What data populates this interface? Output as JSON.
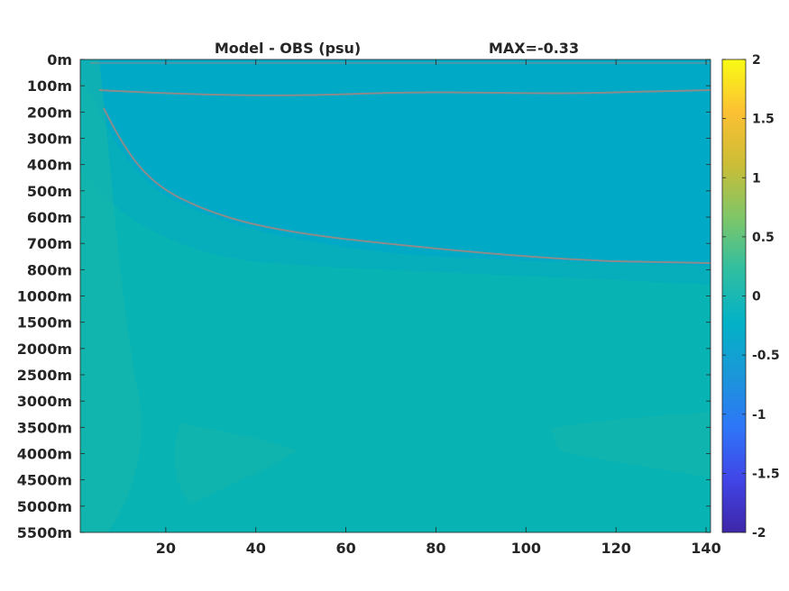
{
  "figure": {
    "title_left": "Model - OBS (psu)",
    "title_right": "MAX=-0.33"
  },
  "chart_data": {
    "type": "heatmap",
    "title": "Model - OBS (psu)",
    "annotation": "MAX=-0.33",
    "x": {
      "ticks": [
        20,
        40,
        60,
        80,
        100,
        120,
        140
      ],
      "range": [
        1,
        141
      ]
    },
    "y": {
      "reversed": true,
      "tick_labels": [
        "0m",
        "100m",
        "200m",
        "300m",
        "400m",
        "500m",
        "600m",
        "700m",
        "800m",
        "1000m",
        "1500m",
        "2000m",
        "2500m",
        "3000m",
        "3500m",
        "4000m",
        "4500m",
        "5000m",
        "5500m"
      ]
    },
    "colorbar": {
      "range": [
        -2,
        2
      ],
      "ticks": [
        "2",
        "1.5",
        "1",
        "0.5",
        "0",
        "-0.5",
        "-1",
        "-1.5",
        "-2"
      ],
      "colormap": "parula",
      "stops": [
        "#3e26a8",
        "#4145e7",
        "#2e76f8",
        "#1a97d8",
        "#03b2c6",
        "#30bea0",
        "#7fc668",
        "#cbbd36",
        "#fcc033",
        "#f9fb14"
      ]
    },
    "field_colors": {
      "deep": "#08b3b4",
      "mid": "#05aeba",
      "upper": "#00a9c6",
      "plume": "#18b6a8"
    },
    "contour_color": "#8c8c8c",
    "grid": false
  }
}
